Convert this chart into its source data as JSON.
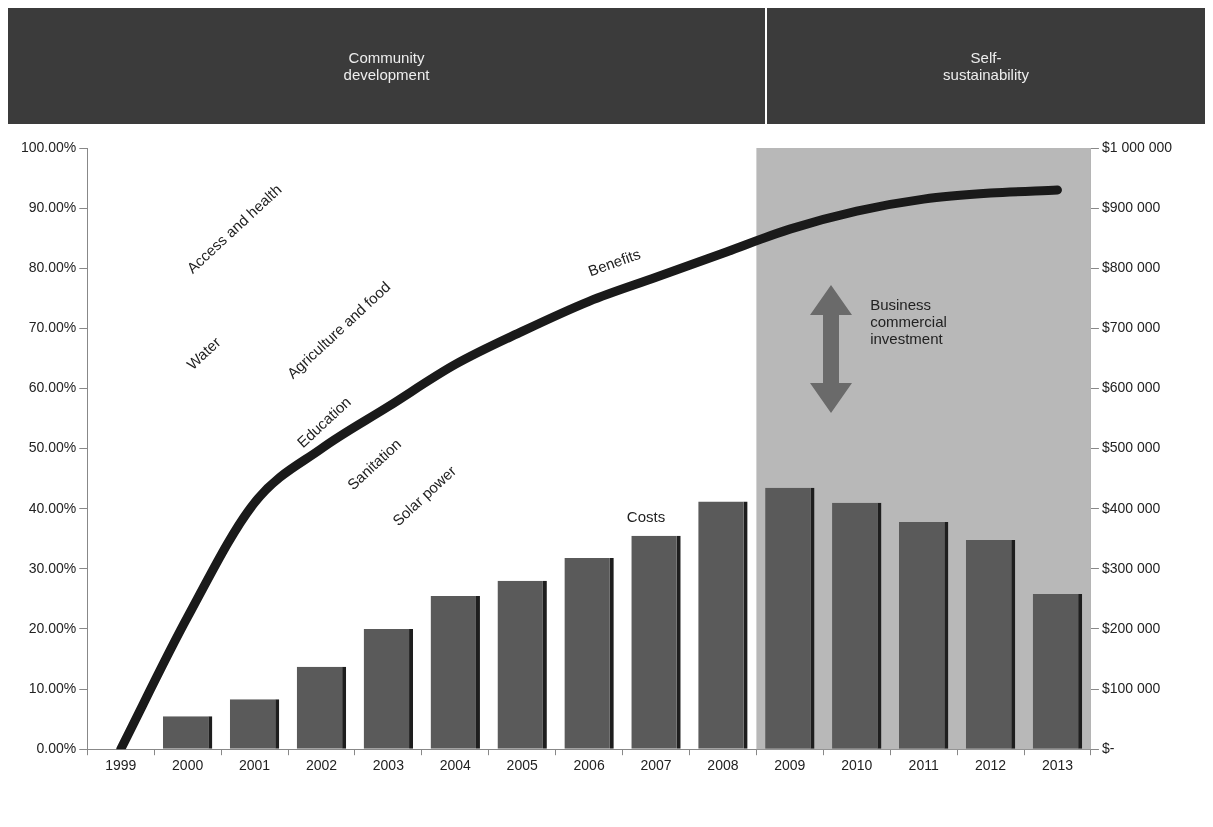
{
  "chart_data": {
    "type": "bar",
    "categories": [
      "1999",
      "2000",
      "2001",
      "2002",
      "2003",
      "2004",
      "2005",
      "2006",
      "2007",
      "2008",
      "2009",
      "2010",
      "2011",
      "2012",
      "2013"
    ],
    "series": [
      {
        "name": "Costs",
        "axis": "y2",
        "color": "#5a5a5a",
        "values": [
          null,
          55000,
          83000,
          137000,
          200000,
          255000,
          280000,
          318000,
          355000,
          412000,
          435000,
          410000,
          378000,
          348000,
          258000
        ]
      },
      {
        "name": "Benefits",
        "type": "line",
        "color": "#1a1a1a",
        "values": [
          0,
          22,
          41,
          50,
          57,
          64,
          69.5,
          74.5,
          78.5,
          82.5,
          86.5,
          89.5,
          91.5,
          92.5,
          93
        ]
      }
    ],
    "ylim": [
      0,
      100
    ],
    "yticks": [
      {
        "value": 0,
        "label": "0.00%"
      },
      {
        "value": 10,
        "label": "10.00%"
      },
      {
        "value": 20,
        "label": "20.00%"
      },
      {
        "value": 30,
        "label": "30.00%"
      },
      {
        "value": 40,
        "label": "40.00%"
      },
      {
        "value": 50,
        "label": "50.00%"
      },
      {
        "value": 60,
        "label": "60.00%"
      },
      {
        "value": 70,
        "label": "70.00%"
      },
      {
        "value": 80,
        "label": "80.00%"
      },
      {
        "value": 90,
        "label": "90.00%"
      },
      {
        "value": 100,
        "label": "100.00%"
      }
    ],
    "y2lim": [
      0,
      1000000
    ],
    "y2ticks": [
      {
        "value": 0,
        "label": "$-"
      },
      {
        "value": 100000,
        "label": "$100 000"
      },
      {
        "value": 200000,
        "label": "$200 000"
      },
      {
        "value": 300000,
        "label": "$300 000"
      },
      {
        "value": 400000,
        "label": "$400 000"
      },
      {
        "value": 500000,
        "label": "$500 000"
      },
      {
        "value": 600000,
        "label": "$600 000"
      },
      {
        "value": 700000,
        "label": "$700 000"
      },
      {
        "value": 800000,
        "label": "$800 000"
      },
      {
        "value": 900000,
        "label": "$900 000"
      },
      {
        "value": 1000000,
        "label": "$1 000 000"
      }
    ],
    "bands": [
      {
        "axis": "x",
        "from": "2009",
        "to": "2013",
        "label": "Business commercial investment",
        "color": "#b8b8b8"
      }
    ],
    "annotations": [
      "Community development",
      "Self-sustainability",
      "Access and health",
      "Water",
      "Agriculture and food",
      "Education",
      "Sanitation",
      "Solar power"
    ],
    "marker": "none",
    "grid": false,
    "legend": false
  }
}
